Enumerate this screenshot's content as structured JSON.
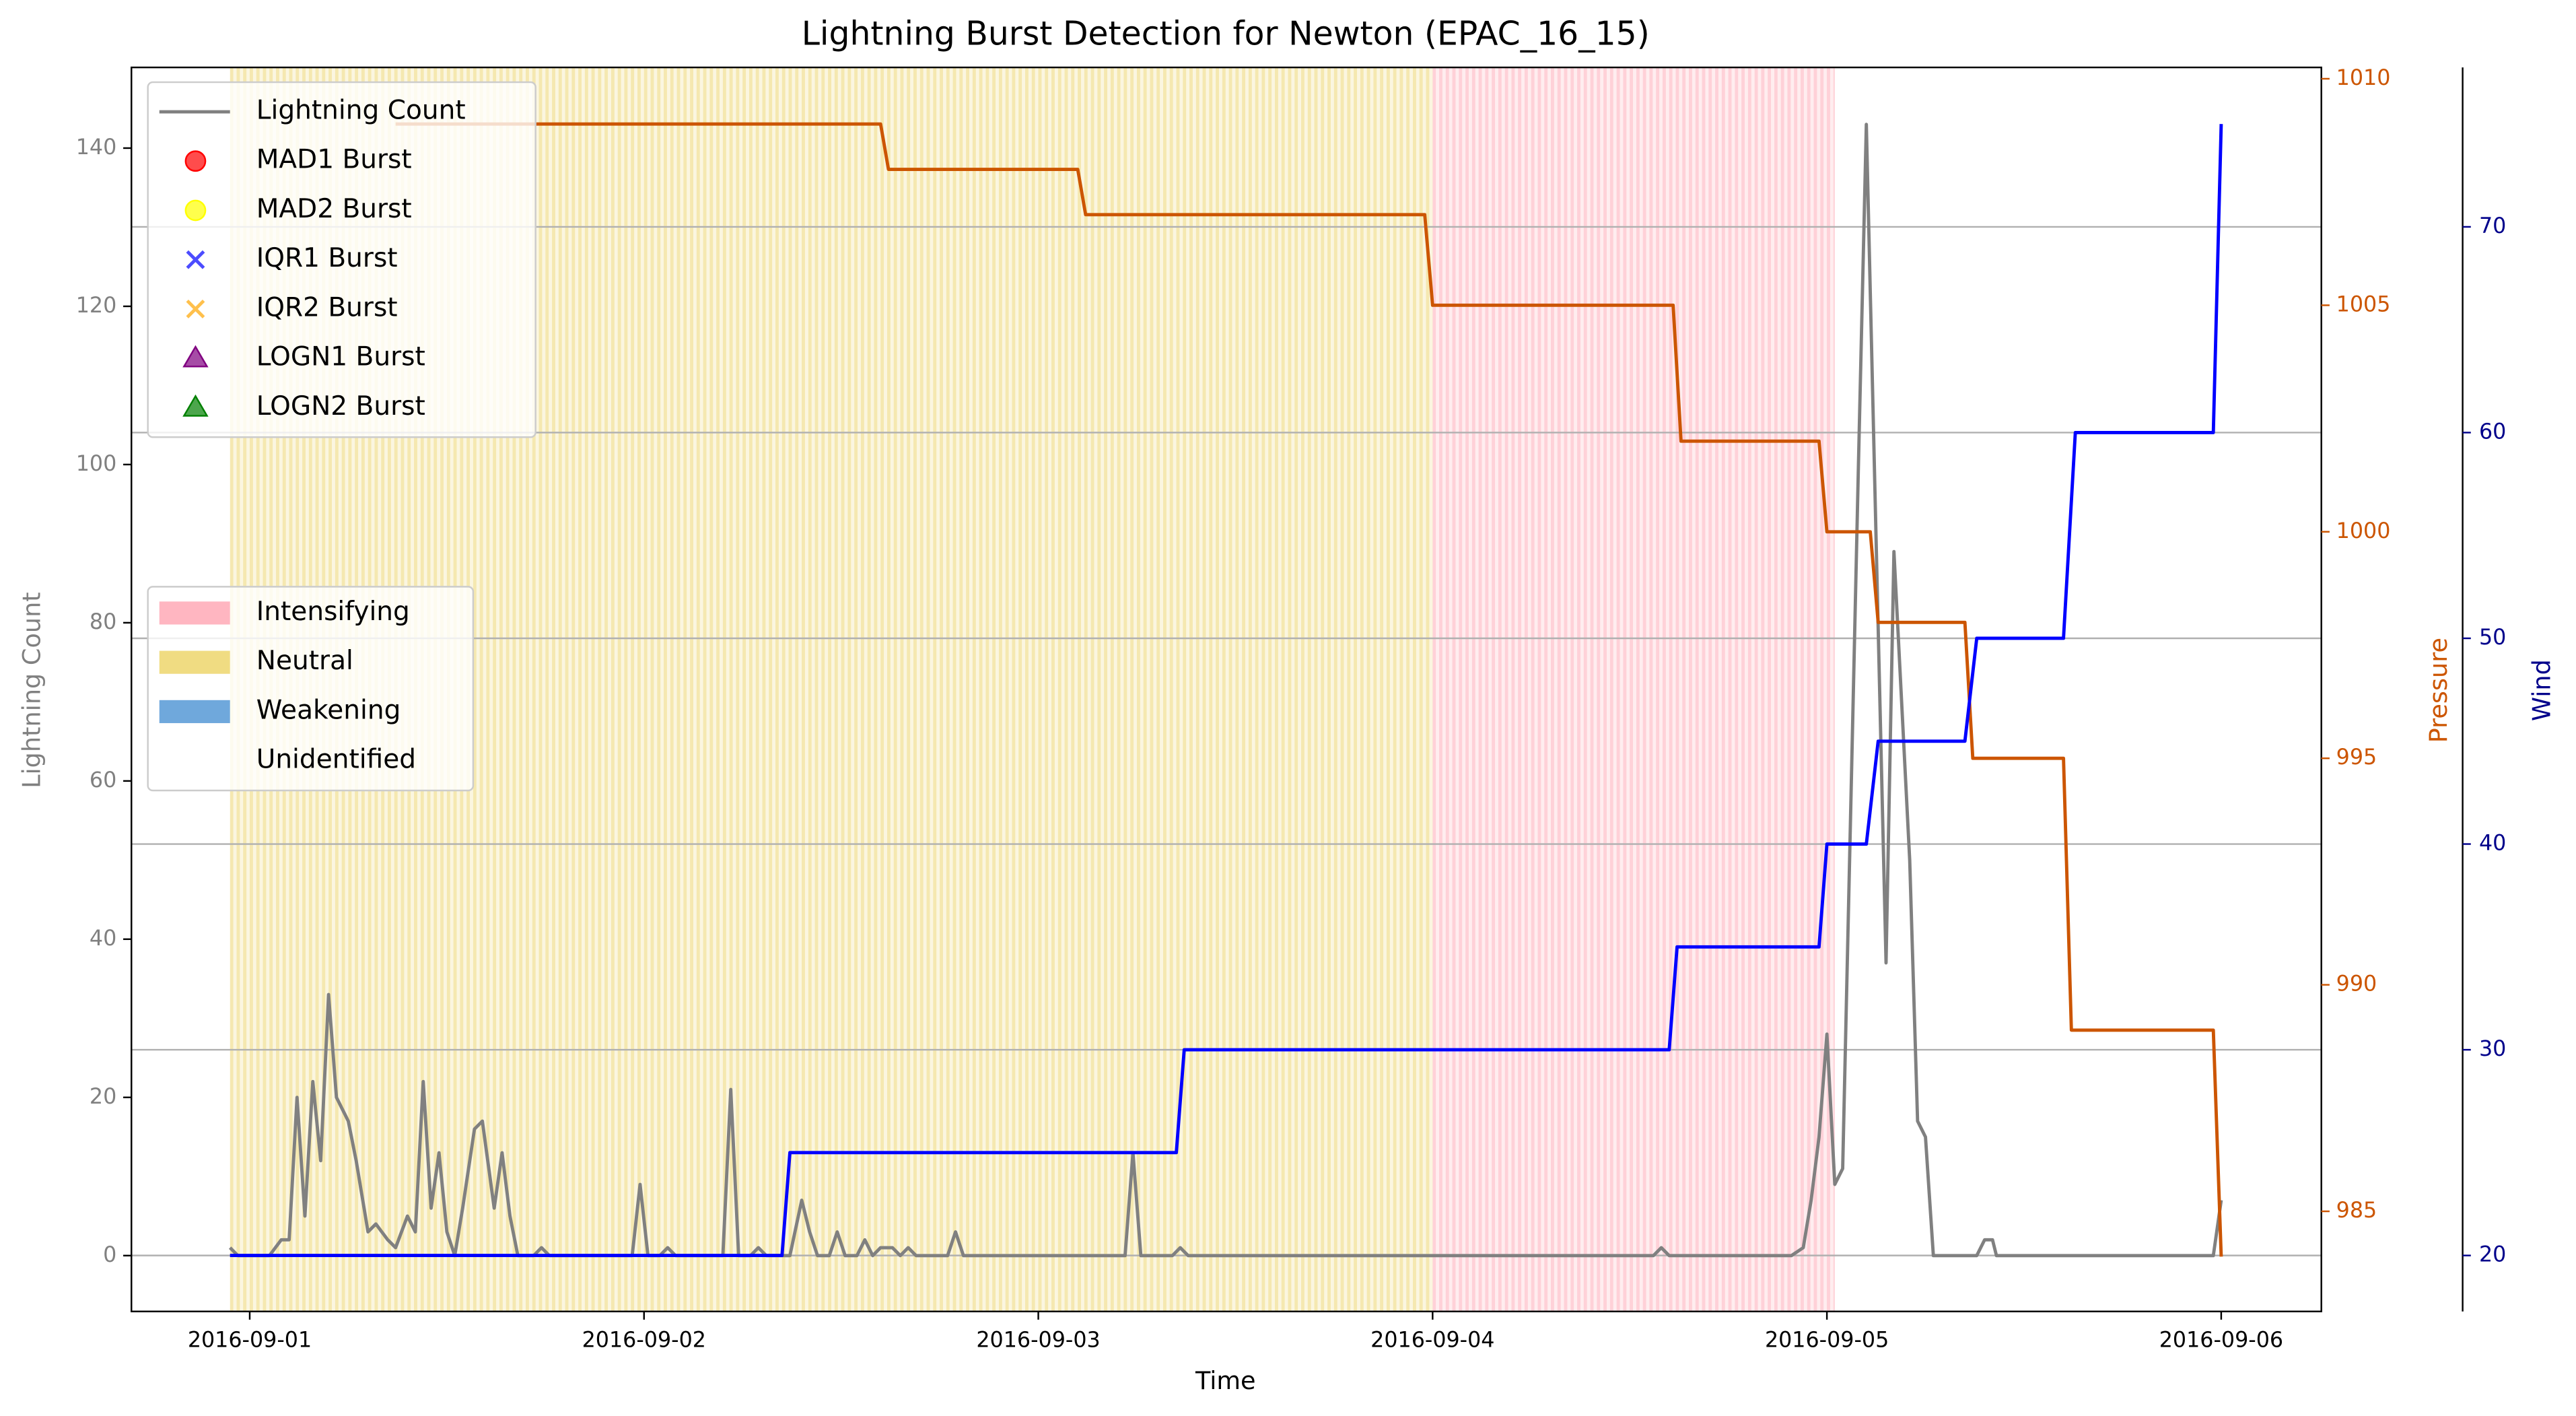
{
  "chart_data": {
    "type": "line",
    "title": "Lightning Burst Detection for Newton (EPAC_16_15)",
    "xlabel": "Time",
    "ylabel": "Lightning Count",
    "y2label": "Pressure",
    "y3label": "Wind",
    "xlim": [
      -0.3,
      5.254
    ],
    "xticks": [
      {
        "value": 0,
        "label": "2016-09-01"
      },
      {
        "value": 1,
        "label": "2016-09-02"
      },
      {
        "value": 2,
        "label": "2016-09-03"
      },
      {
        "value": 3,
        "label": "2016-09-04"
      },
      {
        "value": 4,
        "label": "2016-09-05"
      },
      {
        "value": 5,
        "label": "2016-09-06"
      }
    ],
    "ylim": [
      -7.06,
      150.2
    ],
    "yticks": [
      0,
      20,
      40,
      60,
      80,
      100,
      120,
      140
    ],
    "y2lim": [
      982.79,
      1010.25
    ],
    "y2ticks": [
      985,
      990,
      995,
      1000,
      1005,
      1010
    ],
    "y3lim": [
      17.28,
      77.75
    ],
    "y3ticks": [
      20,
      30,
      40,
      50,
      60,
      70
    ],
    "grid": true,
    "series": [
      {
        "name": "Lightning Count",
        "color": "#808080",
        "x": [
          -0.05,
          -0.03,
          0.05,
          0.08,
          0.1,
          0.12,
          0.14,
          0.16,
          0.18,
          0.2,
          0.22,
          0.25,
          0.27,
          0.3,
          0.32,
          0.35,
          0.37,
          0.4,
          0.42,
          0.44,
          0.46,
          0.48,
          0.5,
          0.52,
          0.54,
          0.57,
          0.59,
          0.62,
          0.64,
          0.66,
          0.68,
          0.72,
          0.74,
          0.76,
          0.97,
          0.99,
          1.01,
          1.04,
          1.06,
          1.08,
          1.2,
          1.22,
          1.24,
          1.27,
          1.29,
          1.31,
          1.37,
          1.4,
          1.42,
          1.44,
          1.47,
          1.49,
          1.51,
          1.54,
          1.56,
          1.58,
          1.6,
          1.63,
          1.65,
          1.67,
          1.69,
          1.77,
          1.79,
          1.81,
          2.22,
          2.24,
          2.26,
          2.34,
          2.36,
          2.38,
          3.56,
          3.58,
          3.6,
          3.91,
          3.94,
          3.96,
          3.98,
          4.0,
          4.02,
          4.04,
          4.08,
          4.1,
          4.15,
          4.17,
          4.21,
          4.23,
          4.25,
          4.27,
          4.38,
          4.4,
          4.42,
          4.43,
          4.98,
          5.0
        ],
        "values": [
          1,
          0,
          0,
          2,
          2,
          20,
          5,
          22,
          12,
          33,
          20,
          17,
          12,
          3,
          4,
          2,
          1,
          5,
          3,
          22,
          6,
          13,
          3,
          0,
          6,
          16,
          17,
          6,
          13,
          5,
          0,
          0,
          1,
          0,
          0,
          9,
          0,
          0,
          1,
          0,
          0,
          21,
          0,
          0,
          1,
          0,
          0,
          7,
          3,
          0,
          0,
          3,
          0,
          0,
          2,
          0,
          1,
          1,
          0,
          1,
          0,
          0,
          3,
          0,
          0,
          13,
          0,
          0,
          1,
          0,
          0,
          1,
          0,
          0,
          1,
          7,
          15,
          28,
          9,
          11,
          100,
          143,
          37,
          89,
          50,
          17,
          15,
          0,
          0,
          2,
          2,
          0,
          0,
          7
        ]
      }
    ],
    "pressure": {
      "color": "#cc5500",
      "x": [
        0.37,
        1.6,
        1.62,
        2.1,
        2.12,
        2.98,
        3.0,
        3.61,
        3.63,
        3.98,
        4.0,
        4.11,
        4.13,
        4.35,
        4.37,
        4.6,
        4.62,
        4.98,
        5.0
      ],
      "values": [
        1009,
        1009,
        1008,
        1008,
        1007,
        1007,
        1005,
        1005,
        1002,
        1002,
        1000,
        1000,
        998,
        998,
        995,
        995,
        989,
        989,
        984
      ]
    },
    "wind": {
      "color": "#0000ff",
      "x": [
        -0.05,
        1.35,
        1.37,
        2.35,
        2.37,
        3.6,
        3.62,
        3.98,
        4.0,
        4.1,
        4.13,
        4.35,
        4.38,
        4.6,
        4.63,
        4.98,
        5.0
      ],
      "values": [
        20,
        20,
        25,
        25,
        30,
        30,
        35,
        35,
        40,
        40,
        45,
        45,
        50,
        50,
        60,
        60,
        75
      ]
    },
    "bursts": [
      {
        "name": "MAD1 Burst",
        "color": "#ff0000",
        "marker": "circle"
      },
      {
        "name": "MAD2 Burst",
        "color": "#ffff00",
        "marker": "circle"
      },
      {
        "name": "IQR1 Burst",
        "color": "#0000ff",
        "marker": "x"
      },
      {
        "name": "IQR2 Burst",
        "color": "#ffa500",
        "marker": "x"
      },
      {
        "name": "LOGN1 Burst",
        "color": "#800080",
        "marker": "triangle"
      },
      {
        "name": "LOGN2 Burst",
        "color": "#008000",
        "marker": "triangle"
      }
    ],
    "phases": [
      {
        "name": "Intensifying",
        "color": "#ffb6c1",
        "start": 3.0,
        "end": 4.02
      },
      {
        "name": "Neutral",
        "color": "#f0dc82",
        "start": -0.05,
        "end": 3.0
      },
      {
        "name": "Weakening",
        "color": "#6fa8dc"
      },
      {
        "name": "Unidentified",
        "color": "#ffffff"
      }
    ]
  }
}
